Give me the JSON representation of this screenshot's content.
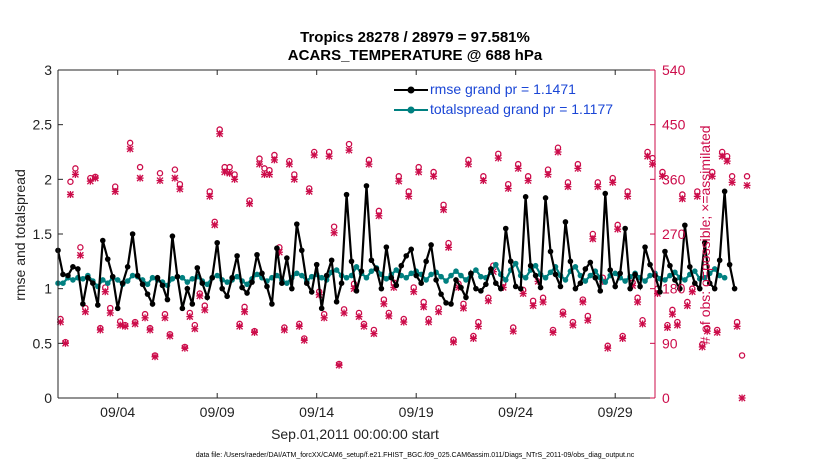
{
  "chart_data": {
    "type": "line",
    "title_line1": "Tropics 28278 / 28979 = 97.581%",
    "title_line2": "ACARS_TEMPERATURE @ 688 hPa",
    "xlabel": "Sep.01,2011 00:00:00 start",
    "ylabel": "rmse and totalspread",
    "y2label": "# of obs: o=possible; ×=assimilated",
    "footnote": "data file: /Users/raeder/DAI/ATM_forcXX/CAM6_setup/f.e21.FHIST_BGC.f09_025.CAM6assim.011/Diags_NTrS_2011-09/obs_diag_output.nc",
    "xlim": [
      1,
      31
    ],
    "ylim": [
      0,
      3
    ],
    "y2lim": [
      0,
      540
    ],
    "x_ticks": [
      4,
      9,
      14,
      19,
      24,
      29
    ],
    "x_tick_labels": [
      "09/04",
      "09/09",
      "09/14",
      "09/19",
      "09/24",
      "09/29"
    ],
    "y_ticks": [
      0,
      0.5,
      1,
      1.5,
      2,
      2.5,
      3
    ],
    "y_tick_labels": [
      "0",
      "0.5",
      "1",
      "1.5",
      "2",
      "2.5",
      "3"
    ],
    "y2_ticks": [
      0,
      90,
      180,
      270,
      360,
      450,
      540
    ],
    "y2_tick_labels": [
      "0",
      "90",
      "180",
      "270",
      "360",
      "450",
      "540"
    ],
    "colors": {
      "rmse": "#000000",
      "spread": "#008080",
      "obs": "#cc0c4a",
      "legend_text": "#1a46d6"
    },
    "series": [
      {
        "name": "rmse grand pr = 1.1471",
        "x_start": 1.0,
        "x_step": 0.25,
        "values": [
          1.35,
          1.13,
          1.12,
          1.2,
          1.18,
          0.86,
          1.1,
          1.05,
          0.85,
          1.44,
          1.27,
          1.11,
          0.82,
          1.05,
          1.2,
          1.5,
          1.12,
          1.04,
          0.95,
          0.86,
          1.1,
          1.03,
          0.9,
          1.48,
          1.11,
          0.82,
          1.0,
          0.86,
          1.19,
          1.05,
          0.92,
          1.1,
          1.42,
          1.0,
          0.93,
          1.1,
          1.3,
          1.01,
          0.96,
          1.06,
          1.31,
          1.14,
          1.02,
          0.86,
          1.37,
          1.05,
          1.28,
          1.0,
          1.59,
          1.35,
          1.05,
          0.97,
          1.22,
          0.82,
          1.12,
          1.26,
          0.88,
          1.05,
          1.86,
          1.25,
          0.98,
          1.16,
          1.94,
          1.26,
          1.18,
          1.0,
          1.38,
          1.1,
          1.03,
          1.21,
          1.3,
          1.36,
          1.12,
          1.05,
          1.25,
          1.4,
          1.08,
          0.95,
          0.87,
          0.86,
          1.08,
          1.01,
          0.92,
          1.14,
          1.0,
          0.98,
          1.04,
          1.18,
          1.05,
          1.0,
          1.55,
          1.25,
          1.02,
          1.0,
          1.84,
          1.21,
          1.12,
          1.01,
          1.83,
          1.34,
          1.13,
          1.02,
          1.61,
          1.25,
          1.0,
          1.05,
          1.18,
          1.24,
          1.1,
          0.98,
          1.87,
          1.17,
          1.02,
          1.14,
          1.55,
          1.0,
          1.13,
          1.02,
          1.38,
          1.22,
          1.12,
          0.97,
          1.34,
          1.21,
          1.08,
          1.0,
          1.58,
          1.2,
          1.05,
          1.0,
          1.42,
          1.05,
          1.0,
          1.26,
          1.89,
          1.22,
          1.0
        ]
      },
      {
        "name": "totalspread grand pr = 1.1177",
        "x_start": 1.0,
        "x_step": 0.25,
        "values": [
          1.05,
          1.05,
          1.1,
          1.08,
          1.1,
          1.09,
          1.12,
          1.07,
          1.02,
          1.08,
          1.05,
          1.1,
          1.08,
          1.04,
          1.07,
          1.12,
          1.11,
          1.08,
          1.04,
          1.1,
          1.08,
          1.06,
          1.03,
          1.09,
          1.11,
          1.1,
          1.06,
          1.09,
          1.11,
          1.07,
          1.04,
          1.1,
          1.12,
          1.08,
          1.06,
          1.08,
          1.11,
          1.07,
          1.04,
          1.09,
          1.13,
          1.1,
          1.07,
          1.1,
          1.12,
          1.08,
          1.05,
          1.1,
          1.14,
          1.12,
          1.07,
          1.11,
          1.13,
          1.1,
          1.08,
          1.15,
          1.17,
          1.12,
          1.1,
          1.12,
          1.2,
          1.14,
          1.1,
          1.16,
          1.19,
          1.13,
          1.09,
          1.13,
          1.17,
          1.12,
          1.1,
          1.14,
          1.16,
          1.13,
          1.08,
          1.13,
          1.15,
          1.11,
          1.07,
          1.12,
          1.16,
          1.12,
          1.08,
          1.13,
          1.17,
          1.11,
          1.1,
          1.15,
          1.22,
          1.13,
          1.08,
          1.17,
          1.23,
          1.12,
          1.1,
          1.17,
          1.21,
          1.13,
          1.1,
          1.15,
          1.2,
          1.12,
          1.08,
          1.16,
          1.2,
          1.12,
          1.07,
          1.12,
          1.16,
          1.1,
          1.06,
          1.12,
          1.14,
          1.1,
          1.07,
          1.11,
          1.14,
          1.1,
          1.07,
          1.12,
          1.14,
          1.09,
          1.08,
          1.12,
          1.15,
          1.1,
          1.08,
          1.13,
          1.16,
          1.09,
          1.1,
          1.14,
          1.18,
          1.12,
          1.1
        ]
      }
    ],
    "obs": {
      "possible_label": "o=possible",
      "assimilated_label": "×=assimilated",
      "x_start": 1.125,
      "x_step": 0.25,
      "possible": [
        130,
        92,
        356,
        378,
        248,
        148,
        362,
        364,
        115,
        182,
        148,
        348,
        126,
        120,
        420,
        125,
        380,
        138,
        115,
        70,
        370,
        138,
        105,
        376,
        352,
        84,
        140,
        120,
        172,
        152,
        340,
        290,
        442,
        380,
        380,
        368,
        122,
        150,
        325,
        110,
        394,
        378,
        375,
        400,
        248,
        116,
        390,
        368,
        122,
        98,
        345,
        405,
        175,
        138,
        405,
        282,
        56,
        146,
        418,
        188,
        140,
        122,
        392,
        112,
        308,
        162,
        140,
        190,
        365,
        130,
        340,
        182,
        380,
        158,
        130,
        372,
        148,
        318,
        255,
        96,
        188,
        155,
        392,
        102,
        125,
        365,
        165,
        218,
        402,
        190,
        352,
        116,
        385,
        178,
        365,
        160,
        198,
        165,
        376,
        112,
        412,
        142,
        355,
        125,
        385,
        162,
        135,
        270,
        355,
        198,
        86,
        362,
        285,
        102,
        340,
        190,
        165,
        128,
        405,
        395,
        180,
        372,
        120,
        145,
        125,
        335,
        158,
        180,
        340,
        88,
        115,
        372,
        112,
        405,
        398,
        365,
        125,
        70,
        365
      ],
      "assimilated": [
        125,
        90,
        335,
        368,
        235,
        142,
        357,
        362,
        112,
        175,
        140,
        340,
        120,
        118,
        410,
        122,
        362,
        132,
        112,
        68,
        358,
        132,
        102,
        362,
        344,
        82,
        134,
        114,
        168,
        145,
        332,
        285,
        435,
        372,
        370,
        360,
        118,
        142,
        320,
        108,
        385,
        368,
        368,
        392,
        240,
        112,
        385,
        360,
        118,
        95,
        340,
        400,
        170,
        132,
        398,
        272,
        54,
        140,
        408,
        180,
        134,
        118,
        385,
        106,
        300,
        155,
        135,
        182,
        357,
        125,
        332,
        175,
        372,
        150,
        125,
        365,
        142,
        310,
        248,
        92,
        182,
        148,
        385,
        98,
        118,
        358,
        160,
        208,
        395,
        182,
        345,
        110,
        378,
        172,
        358,
        152,
        192,
        158,
        368,
        108,
        405,
        138,
        348,
        120,
        378,
        158,
        128,
        262,
        348,
        192,
        82,
        355,
        278,
        98,
        332,
        185,
        158,
        122,
        398,
        385,
        172,
        365,
        116,
        138,
        120,
        328,
        152,
        175,
        332,
        84,
        110,
        365,
        108,
        398,
        390,
        355,
        118,
        0,
        350
      ]
    }
  }
}
